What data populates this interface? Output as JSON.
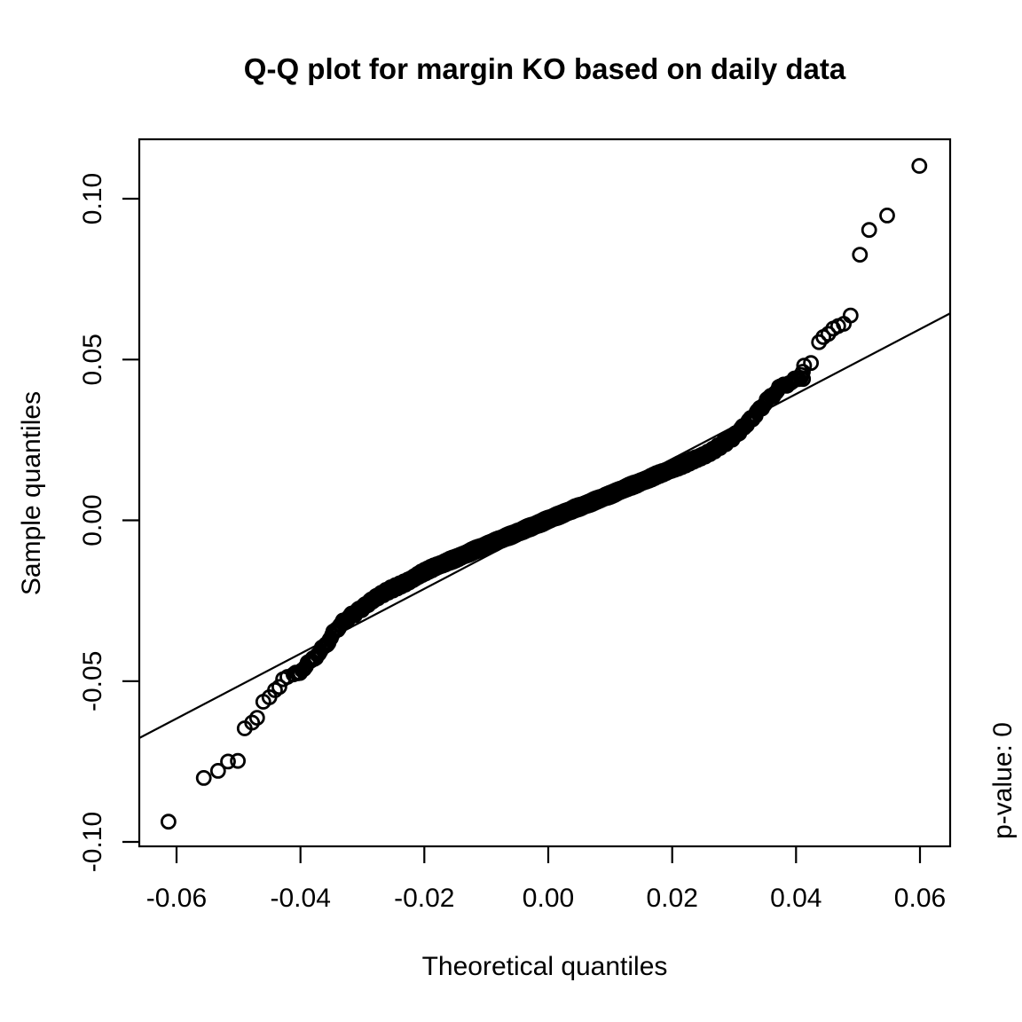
{
  "figure": {
    "background_color": "#ffffff",
    "foreground_color": "#000000"
  },
  "chart_data": {
    "type": "scatter",
    "subtype": "qq-plot",
    "title": "Q-Q plot for margin KO based on daily data",
    "xlabel": "Theoretical quantiles",
    "ylabel": "Sample quantiles",
    "annotation_right": "p-value: 0",
    "grid": false,
    "legend": "none",
    "marker": "open-circle",
    "marker_color": "#000000",
    "xlim": [
      -0.066,
      0.0649
    ],
    "ylim": [
      -0.1014,
      0.1185
    ],
    "x_ticks": [
      -0.06,
      -0.04,
      -0.02,
      0.0,
      0.02,
      0.04,
      0.06
    ],
    "x_tick_labels": [
      "-0.06",
      "-0.04",
      "-0.02",
      "0.00",
      "0.02",
      "0.04",
      "0.06"
    ],
    "y_ticks": [
      -0.1,
      -0.05,
      0.0,
      0.05,
      0.1
    ],
    "y_tick_labels": [
      "-0.10",
      "-0.05",
      "0.00",
      "0.05",
      "0.10"
    ],
    "reference_line": {
      "x1": -0.066,
      "y1": -0.0677,
      "x2": 0.0649,
      "y2": 0.0644
    },
    "curve_control_points": [
      [
        -0.042,
        -0.0487
      ],
      [
        -0.041,
        -0.048
      ],
      [
        -0.04,
        -0.0468
      ],
      [
        -0.038,
        -0.0432
      ],
      [
        -0.036,
        -0.039
      ],
      [
        -0.034,
        -0.0335
      ],
      [
        -0.032,
        -0.03
      ],
      [
        -0.03,
        -0.0272
      ],
      [
        -0.028,
        -0.0243
      ],
      [
        -0.026,
        -0.022
      ],
      [
        -0.024,
        -0.0203
      ],
      [
        -0.022,
        -0.0183
      ],
      [
        -0.02,
        -0.016
      ],
      [
        -0.016,
        -0.0127
      ],
      [
        -0.012,
        -0.0094
      ],
      [
        -0.008,
        -0.0062
      ],
      [
        -0.004,
        -0.003
      ],
      [
        0.0,
        0.0002
      ],
      [
        0.004,
        0.0034
      ],
      [
        0.008,
        0.0064
      ],
      [
        0.012,
        0.0096
      ],
      [
        0.016,
        0.0128
      ],
      [
        0.02,
        0.016
      ],
      [
        0.024,
        0.0192
      ],
      [
        0.026,
        0.021
      ],
      [
        0.028,
        0.0235
      ],
      [
        0.03,
        0.0262
      ],
      [
        0.032,
        0.03
      ],
      [
        0.0335,
        0.033
      ],
      [
        0.035,
        0.0365
      ],
      [
        0.0365,
        0.0395
      ],
      [
        0.038,
        0.042
      ],
      [
        0.0395,
        0.0432
      ],
      [
        0.0412,
        0.0445
      ]
    ],
    "lower_tail_points": [
      [
        -0.0613,
        -0.0937
      ],
      [
        -0.0556,
        -0.0801
      ],
      [
        -0.0533,
        -0.0779
      ],
      [
        -0.0517,
        -0.075
      ],
      [
        -0.0501,
        -0.0748
      ],
      [
        -0.049,
        -0.0647
      ],
      [
        -0.0478,
        -0.0629
      ],
      [
        -0.047,
        -0.0614
      ],
      [
        -0.046,
        -0.0564
      ],
      [
        -0.045,
        -0.055
      ],
      [
        -0.0441,
        -0.0528
      ],
      [
        -0.0434,
        -0.0518
      ],
      [
        -0.0428,
        -0.0494
      ],
      [
        -0.0421,
        -0.0487
      ]
    ],
    "upper_tail_points": [
      [
        0.0408,
        0.0452
      ],
      [
        0.0411,
        0.0462
      ],
      [
        0.0413,
        0.0481
      ],
      [
        0.0424,
        0.0489
      ],
      [
        0.0437,
        0.0554
      ],
      [
        0.0444,
        0.057
      ],
      [
        0.0452,
        0.058
      ],
      [
        0.046,
        0.0596
      ],
      [
        0.0468,
        0.0604
      ],
      [
        0.0477,
        0.0611
      ],
      [
        0.0488,
        0.0637
      ],
      [
        0.0503,
        0.0826
      ],
      [
        0.0518,
        0.0903
      ],
      [
        0.0547,
        0.0948
      ],
      [
        0.0599,
        0.1102
      ]
    ],
    "dense_band": {
      "n_total": 1400,
      "sigma": 0.0187,
      "theoretical_range": [
        -0.0412,
        0.0412
      ],
      "wiggle_amplitude": 0.00045
    }
  }
}
